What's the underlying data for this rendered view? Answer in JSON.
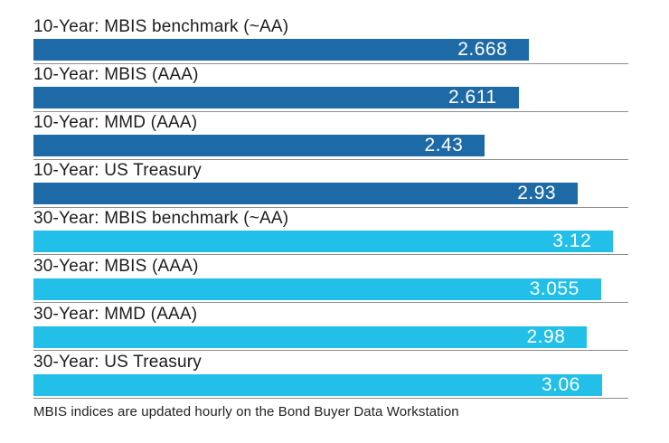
{
  "chart_data": {
    "type": "bar",
    "orientation": "horizontal",
    "title": "",
    "xlabel": "",
    "ylabel": "",
    "xlim": [
      0,
      3.2
    ],
    "grid": "divider line under each bar",
    "legend": "none",
    "colors": {
      "ten_year_bar": "#1e6aa6",
      "thirty_year_bar": "#22bfe9",
      "divider": "#8c8c8c",
      "label_text": "#1d1d1d",
      "value_text": "#ffffff"
    },
    "rows": [
      {
        "category": "10-Year: MBIS benchmark (~AA)",
        "value": 2.668,
        "value_label": "2.668",
        "group": "10-year"
      },
      {
        "category": "10-Year: MBIS (AAA)",
        "value": 2.611,
        "value_label": "2.611",
        "group": "10-year"
      },
      {
        "category": "10-Year: MMD (AAA)",
        "value": 2.43,
        "value_label": "2.43",
        "group": "10-year"
      },
      {
        "category": "10-Year: US Treasury",
        "value": 2.93,
        "value_label": "2.93",
        "group": "10-year"
      },
      {
        "category": "30-Year: MBIS benchmark (~AA)",
        "value": 3.12,
        "value_label": "3.12",
        "group": "30-year"
      },
      {
        "category": "30-Year: MBIS (AAA)",
        "value": 3.055,
        "value_label": "3.055",
        "group": "30-year"
      },
      {
        "category": "30-Year: MMD (AAA)",
        "value": 2.98,
        "value_label": "2.98",
        "group": "30-year"
      },
      {
        "category": "30-Year: US Treasury",
        "value": 3.06,
        "value_label": "3.06",
        "group": "30-year"
      }
    ],
    "footnote": "MBIS indices are updated hourly on the Bond Buyer Data Workstation"
  }
}
